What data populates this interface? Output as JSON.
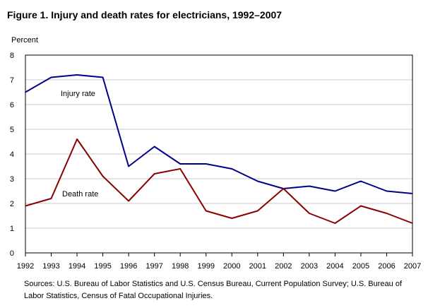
{
  "title": "Figure 1. Injury and death rates for electricians, 1992–2007",
  "source": "Sources: U.S. Bureau of Labor Statistics and U.S. Census Bureau, Current Population Survey; U.S. Bureau of Labor Statistics, Census of Fatal Occupational Injuries.",
  "chart_data": {
    "type": "line",
    "title": "Figure 1. Injury and death rates for electricians, 1992–2007",
    "ylabel": "Percent",
    "xlabel": "",
    "x": [
      "1992",
      "1993",
      "1994",
      "1995",
      "1996",
      "1997",
      "1998",
      "1999",
      "2000",
      "2001",
      "2002",
      "2003",
      "2004",
      "2005",
      "2006",
      "2007"
    ],
    "ylim": [
      0,
      8
    ],
    "yticks": [
      "0",
      "1",
      "2",
      "3",
      "4",
      "5",
      "6",
      "7",
      "8"
    ],
    "grid": true,
    "legend": "inline labels",
    "series": [
      {
        "name": "Injury rate",
        "color": "#00008b",
        "values": [
          6.5,
          7.1,
          7.2,
          7.1,
          3.5,
          4.3,
          3.6,
          3.6,
          3.4,
          2.9,
          2.6,
          2.7,
          2.5,
          2.9,
          2.5,
          2.4
        ]
      },
      {
        "name": "Death rate",
        "color": "#8b0000",
        "values": [
          1.9,
          2.2,
          4.6,
          3.1,
          2.1,
          3.2,
          3.4,
          1.7,
          1.4,
          1.7,
          2.6,
          1.6,
          1.2,
          1.9,
          1.6,
          1.2
        ]
      }
    ]
  }
}
